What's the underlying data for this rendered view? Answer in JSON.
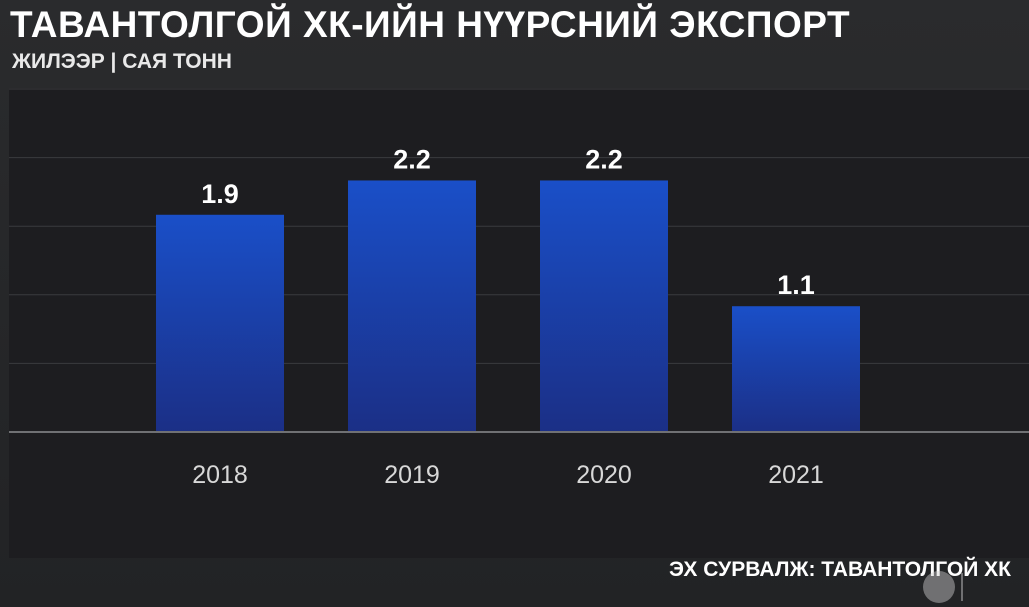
{
  "header": {
    "title": "ТАВАНТОЛГОЙ ХК-ИЙН НҮҮРСНИЙ ЭКСПОРТ",
    "subtitle": "ЖИЛЭЭР | САЯ ТОНН"
  },
  "footer": {
    "source": "ЭХ СУРВАЛЖ: ТАВАНТОЛГОЙ ХК"
  },
  "colors": {
    "bar_top": "#1a4fc8",
    "bar_bottom": "#1b2f86",
    "grid": "#3a3b3e",
    "axis": "#707174"
  },
  "chart_data": {
    "type": "bar",
    "title": "ТАВАНТОЛГОЙ ХК-ИЙН НҮҮРСНИЙ ЭКСПОРТ",
    "subtitle": "ЖИЛЭЭР | САЯ ТОНН",
    "xlabel": "",
    "ylabel": "",
    "categories": [
      "2018",
      "2019",
      "2020",
      "2021"
    ],
    "values": [
      1.9,
      2.2,
      2.2,
      1.1
    ],
    "data_labels": [
      "1.9",
      "2.2",
      "2.2",
      "1.1"
    ],
    "ylim": [
      0,
      3.0
    ],
    "grid": true,
    "legend": "none"
  }
}
